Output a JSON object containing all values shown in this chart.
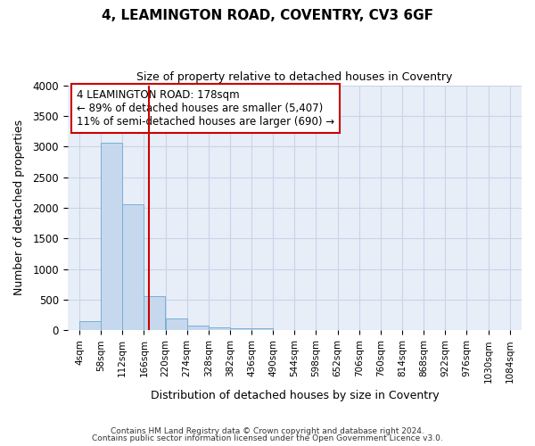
{
  "title": "4, LEAMINGTON ROAD, COVENTRY, CV3 6GF",
  "subtitle": "Size of property relative to detached houses in Coventry",
  "xlabel": "Distribution of detached houses by size in Coventry",
  "ylabel": "Number of detached properties",
  "footnote1": "Contains HM Land Registry data © Crown copyright and database right 2024.",
  "footnote2": "Contains public sector information licensed under the Open Government Licence v3.0.",
  "property_label": "4 LEAMINGTON ROAD: 178sqm",
  "pct_smaller": 89,
  "count_smaller": "5,407",
  "pct_larger": 11,
  "count_larger": 690,
  "bin_edges": [
    4,
    58,
    112,
    166,
    220,
    274,
    328,
    382,
    436,
    490,
    544,
    598,
    652,
    706,
    760,
    814,
    868,
    922,
    976,
    1030,
    1084
  ],
  "bar_heights": [
    150,
    3060,
    2060,
    560,
    200,
    80,
    55,
    40,
    30,
    0,
    0,
    0,
    0,
    0,
    0,
    0,
    0,
    0,
    0,
    0
  ],
  "bar_color": "#c5d8ee",
  "bar_edge_color": "#7aafd4",
  "vline_color": "#cc0000",
  "vline_x": 178,
  "annotation_box_color": "#cc0000",
  "ylim": [
    0,
    4000
  ],
  "yticks": [
    0,
    500,
    1000,
    1500,
    2000,
    2500,
    3000,
    3500,
    4000
  ],
  "grid_color": "#c8d4e8",
  "bg_color": "#ffffff",
  "plot_bg_color": "#e8eef8"
}
